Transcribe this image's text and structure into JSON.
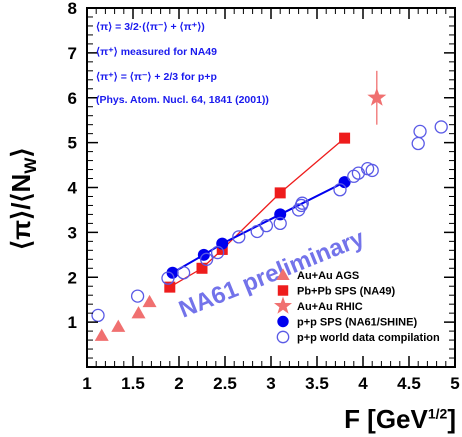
{
  "chart_data": {
    "type": "scatter",
    "xlabel": "F [GeV",
    "xlabel_sup": "1/2",
    "xlabel_end": "]",
    "ylabel": "⟨π⟩/⟨N",
    "ylabel_sub": "W",
    "ylabel_end": "⟩",
    "xlim": [
      1,
      5
    ],
    "ylim": [
      0,
      8
    ],
    "xticks": [
      "1",
      "1.5",
      "2",
      "2.5",
      "3",
      "3.5",
      "4",
      "4.5",
      "5"
    ],
    "yticks": [
      "1",
      "2",
      "3",
      "4",
      "5",
      "6",
      "7",
      "8"
    ],
    "annotations": [
      "⟨π⟩ = 3/2·(⟨π⁻⟩ + ⟨π⁺⟩)",
      "⟨π⁺⟩ measured for NA49",
      "⟨π⁺⟩ = ⟨π⁻⟩ + 2/3 for p+p",
      "(Phys. Atom. Nucl. 64, 1841 (2001))"
    ],
    "watermark": "NA61 preliminary",
    "colors": {
      "red": "#ee1c1c",
      "salmon": "#f07070",
      "blue": "#0000ee",
      "blue_light": "#5a5ae6",
      "text": "#1a1aee"
    },
    "legend_position": "bottom-right",
    "series": [
      {
        "name": "Au+Au AGS",
        "marker": "triangle",
        "color": "#f07070",
        "connected": false,
        "x": [
          1.16,
          1.34,
          1.56,
          1.68
        ],
        "y": [
          0.7,
          0.9,
          1.2,
          1.45
        ]
      },
      {
        "name": "Pb+Pb SPS (NA49)",
        "marker": "square",
        "color": "#ee1c1c",
        "connected": true,
        "x": [
          1.9,
          2.25,
          2.47,
          3.1,
          3.8
        ],
        "y": [
          1.78,
          2.2,
          2.62,
          3.88,
          5.1
        ]
      },
      {
        "name": "Au+Au RHIC",
        "marker": "star",
        "color": "#f07070",
        "connected": true,
        "x": [
          4.15
        ],
        "y": [
          6.0
        ],
        "yerr": [
          0.6
        ]
      },
      {
        "name": "p+p SPS (NA61/SHINE)",
        "marker": "circle",
        "color": "#0000ee",
        "connected": true,
        "x": [
          1.93,
          2.27,
          2.47,
          3.1,
          3.8
        ],
        "y": [
          2.1,
          2.5,
          2.75,
          3.4,
          4.12
        ]
      },
      {
        "name": "p+p world data compilation",
        "marker": "circle-open",
        "color": "#5a5ae6",
        "connected": false,
        "x": [
          1.12,
          1.55,
          1.88,
          2.05,
          2.3,
          2.42,
          2.65,
          2.85,
          2.95,
          3.1,
          3.3,
          3.33,
          3.34,
          3.75,
          3.9,
          3.95,
          4.05,
          4.1,
          4.6,
          4.62,
          4.85
        ],
        "y": [
          1.15,
          1.58,
          1.98,
          2.1,
          2.4,
          2.55,
          2.9,
          3.02,
          3.15,
          3.2,
          3.5,
          3.6,
          3.65,
          3.95,
          4.25,
          4.32,
          4.42,
          4.38,
          4.98,
          5.25,
          5.35
        ]
      }
    ]
  }
}
